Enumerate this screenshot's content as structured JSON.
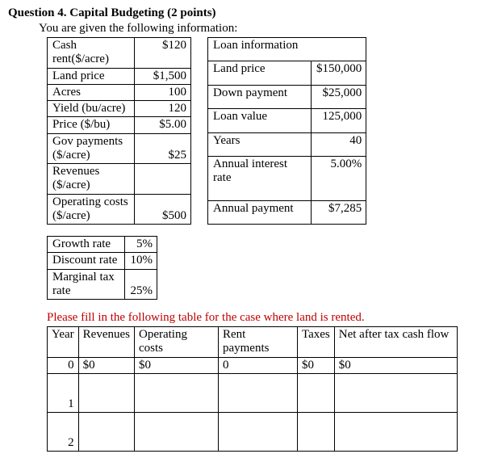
{
  "title": "Question 4. Capital Budgeting (2 points)",
  "intro": "You are given the following information:",
  "info": {
    "rows": [
      {
        "label": "Cash rent($/acre)",
        "value": "$120"
      },
      {
        "label": "Land price",
        "value": "$1,500"
      },
      {
        "label": "Acres",
        "value": "100"
      },
      {
        "label": "Yield (bu/acre)",
        "value": "120"
      },
      {
        "label": "Price ($/bu)",
        "value": "$5.00"
      },
      {
        "label": "Gov payments ($/acre)",
        "value": "$25"
      },
      {
        "label": "Revenues ($/acre)",
        "value": ""
      },
      {
        "label": "Operating costs ($/acre)",
        "value": "$500"
      }
    ]
  },
  "loan": {
    "header": "Loan information",
    "rows": [
      {
        "label": "Land price",
        "value": "$150,000"
      },
      {
        "label": "Down payment",
        "value": "$25,000"
      },
      {
        "label": "Loan value",
        "value": "125,000"
      },
      {
        "label": "Years",
        "value": "40"
      },
      {
        "label": "Annual interest rate",
        "value": "5.00%"
      },
      {
        "label": "Annual payment",
        "value": "$7,285"
      }
    ]
  },
  "rates": {
    "rows": [
      {
        "label": "Growth rate",
        "value": "5%"
      },
      {
        "label": "Discount rate",
        "value": "10%"
      },
      {
        "label": "Marginal tax rate",
        "value": "25%"
      }
    ]
  },
  "prompt": "Please fill in the following table for the case where land is rented.",
  "fill": {
    "headers": [
      "Year",
      "Revenues",
      "Operating costs",
      "Rent payments",
      "Taxes",
      "Net after tax cash flow"
    ],
    "rows": [
      {
        "year": "0",
        "rev": "$0",
        "op": "$0",
        "rp": "0",
        "tx": "$0",
        "cf": "$0"
      },
      {
        "year": "1",
        "rev": "",
        "op": "",
        "rp": "",
        "tx": "",
        "cf": ""
      },
      {
        "year": "2",
        "rev": "",
        "op": "",
        "rp": "",
        "tx": "",
        "cf": ""
      }
    ]
  }
}
